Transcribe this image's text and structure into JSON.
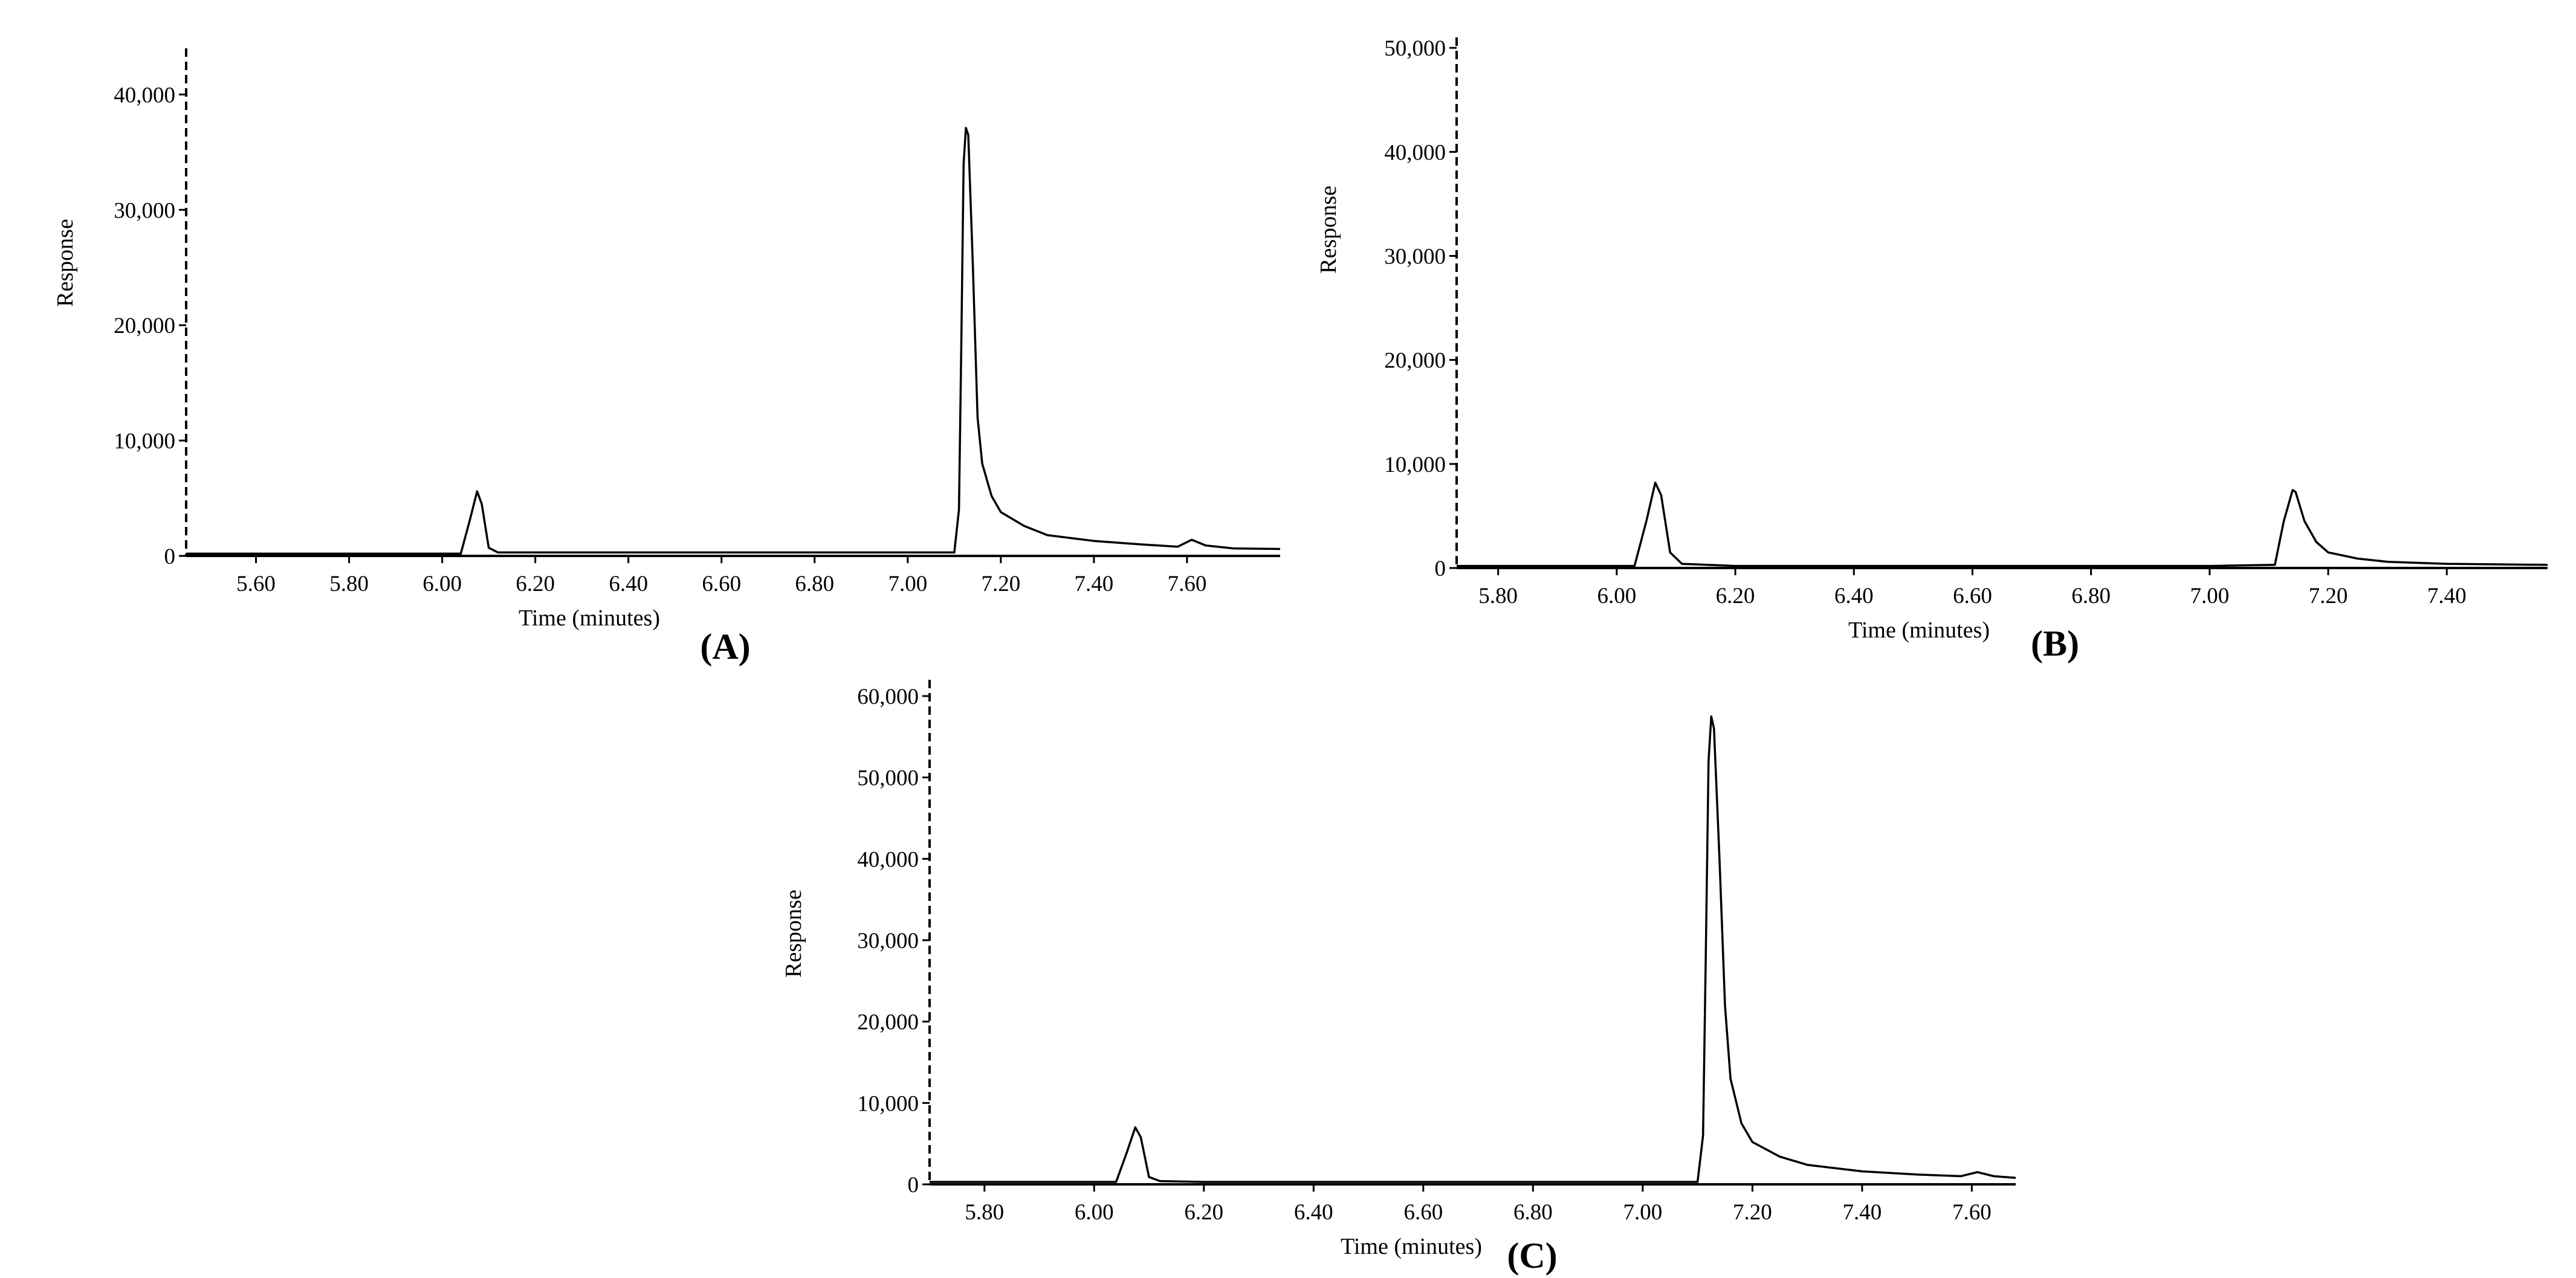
{
  "chart_data": [
    {
      "id": "A",
      "type": "line",
      "panel_label": "(A)",
      "xlabel": "Time (minutes)",
      "ylabel": "Response",
      "xlim": [
        5.45,
        7.8
      ],
      "ylim": [
        0,
        44000
      ],
      "xticks": [
        "5.60",
        "5.80",
        "6.00",
        "6.20",
        "6.40",
        "6.60",
        "6.80",
        "7.00",
        "7.20",
        "7.40",
        "7.60"
      ],
      "yticks": [
        "0",
        "10,000",
        "20,000",
        "30,000",
        "40,000"
      ],
      "series": [
        {
          "x": [
            5.45,
            6.04,
            6.06,
            6.075,
            6.085,
            6.1,
            6.12,
            6.2,
            7.0,
            7.1,
            7.11,
            7.115,
            7.12,
            7.125,
            7.13,
            7.14,
            7.15,
            7.16,
            7.18,
            7.2,
            7.25,
            7.3,
            7.4,
            7.5,
            7.58,
            7.61,
            7.64,
            7.7,
            7.8
          ],
          "y": [
            200,
            200,
            3200,
            5600,
            4500,
            700,
            300,
            300,
            300,
            300,
            4000,
            18000,
            34000,
            37100,
            36500,
            25000,
            12000,
            8000,
            5200,
            3800,
            2600,
            1800,
            1300,
            1000,
            800,
            1400,
            900,
            650,
            600
          ]
        }
      ]
    },
    {
      "id": "B",
      "type": "line",
      "panel_label": "(B)",
      "xlabel": "Time (minutes)",
      "ylabel": "Response",
      "xlim": [
        5.73,
        7.57
      ],
      "ylim": [
        0,
        51000
      ],
      "xticks": [
        "5.80",
        "6.00",
        "6.20",
        "6.40",
        "6.60",
        "6.80",
        "7.00",
        "7.20",
        "7.40"
      ],
      "yticks": [
        "0",
        "10,000",
        "20,000",
        "30,000",
        "40,000",
        "50,000"
      ],
      "series": [
        {
          "x": [
            5.73,
            6.03,
            6.05,
            6.065,
            6.075,
            6.09,
            6.11,
            6.2,
            7.0,
            7.11,
            7.125,
            7.14,
            7.145,
            7.16,
            7.18,
            7.2,
            7.25,
            7.3,
            7.4,
            7.57
          ],
          "y": [
            200,
            200,
            4500,
            8200,
            7000,
            1500,
            400,
            200,
            200,
            300,
            4500,
            7500,
            7300,
            4500,
            2500,
            1500,
            900,
            600,
            400,
            300
          ]
        }
      ]
    },
    {
      "id": "C",
      "type": "line",
      "panel_label": "(C)",
      "xlabel": "Time (minutes)",
      "ylabel": "Response",
      "xlim": [
        5.7,
        7.68
      ],
      "ylim": [
        0,
        62000
      ],
      "xticks": [
        "5.80",
        "6.00",
        "6.20",
        "6.40",
        "6.60",
        "6.80",
        "7.00",
        "7.20",
        "7.40",
        "7.60"
      ],
      "yticks": [
        "0",
        "10,000",
        "20,000",
        "30,000",
        "40,000",
        "50,000",
        "60,000"
      ],
      "series": [
        {
          "x": [
            5.7,
            6.04,
            6.06,
            6.075,
            6.085,
            6.1,
            6.12,
            6.2,
            7.0,
            7.1,
            7.11,
            7.115,
            7.12,
            7.125,
            7.13,
            7.14,
            7.15,
            7.16,
            7.18,
            7.2,
            7.25,
            7.3,
            7.4,
            7.5,
            7.58,
            7.61,
            7.64,
            7.68
          ],
          "y": [
            300,
            300,
            4000,
            7000,
            5800,
            900,
            400,
            300,
            300,
            300,
            6000,
            28000,
            52000,
            57500,
            56000,
            40000,
            22000,
            13000,
            7500,
            5200,
            3400,
            2400,
            1600,
            1200,
            1000,
            1500,
            1000,
            800
          ]
        }
      ]
    }
  ]
}
